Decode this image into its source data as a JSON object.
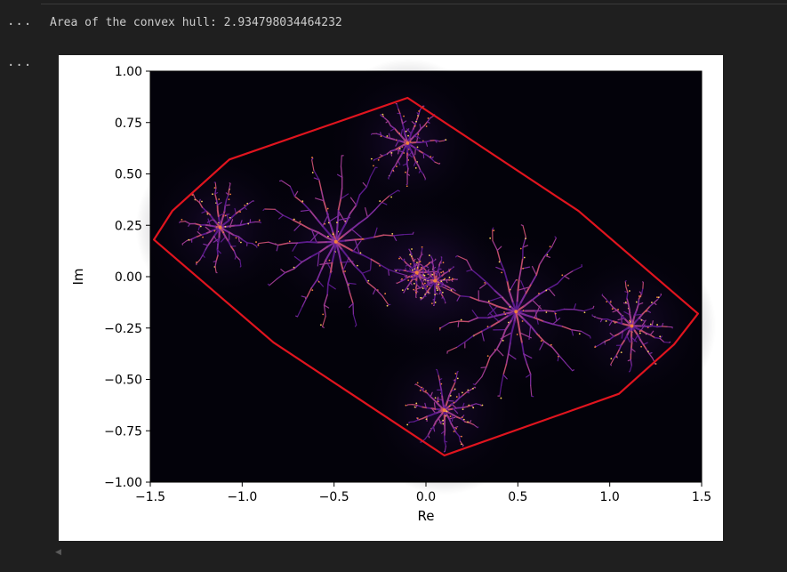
{
  "cells": {
    "output1_gutter": "...",
    "output2_gutter": "...",
    "output_text": "Area of the convex hull: 2.934798034464232"
  },
  "chart_data": {
    "type": "scatter",
    "title": "",
    "xlabel": "Re",
    "ylabel": "Im",
    "xlim": [
      -1.5,
      1.5
    ],
    "ylim": [
      -1.0,
      1.0
    ],
    "xticks": [
      -1.5,
      -1.0,
      -0.5,
      0.0,
      0.5,
      1.0,
      1.5
    ],
    "xtick_labels": [
      "−1.5",
      "−1.0",
      "−0.5",
      "0.0",
      "0.5",
      "1.0",
      "1.5"
    ],
    "yticks": [
      1.0,
      0.75,
      0.5,
      0.25,
      0.0,
      -0.25,
      -0.5,
      -0.75,
      -1.0
    ],
    "ytick_labels": [
      "1.00",
      "0.75",
      "0.50",
      "0.25",
      "0.00",
      "−0.25",
      "−0.50",
      "−0.75",
      "−1.00"
    ],
    "background": "#03020a",
    "colormap": "inferno",
    "hull_color": "#e0141e",
    "hull_vertices": [
      [
        -0.1,
        0.87
      ],
      [
        0.83,
        0.32
      ],
      [
        1.48,
        -0.18
      ],
      [
        1.35,
        -0.33
      ],
      [
        1.05,
        -0.57
      ],
      [
        0.1,
        -0.87
      ],
      [
        -0.83,
        -0.32
      ],
      [
        -1.48,
        0.18
      ],
      [
        -1.38,
        0.32
      ],
      [
        -1.07,
        0.57
      ]
    ],
    "fractal_hubs": [
      [
        -0.49,
        0.17
      ],
      [
        0.49,
        -0.17
      ],
      [
        -1.12,
        0.24
      ],
      [
        1.12,
        -0.24
      ],
      [
        -0.1,
        0.65
      ],
      [
        0.1,
        -0.65
      ],
      [
        -0.05,
        0.02
      ],
      [
        0.05,
        -0.02
      ]
    ]
  },
  "ui": {
    "scroll_left_icon": "chevron-left-icon"
  }
}
